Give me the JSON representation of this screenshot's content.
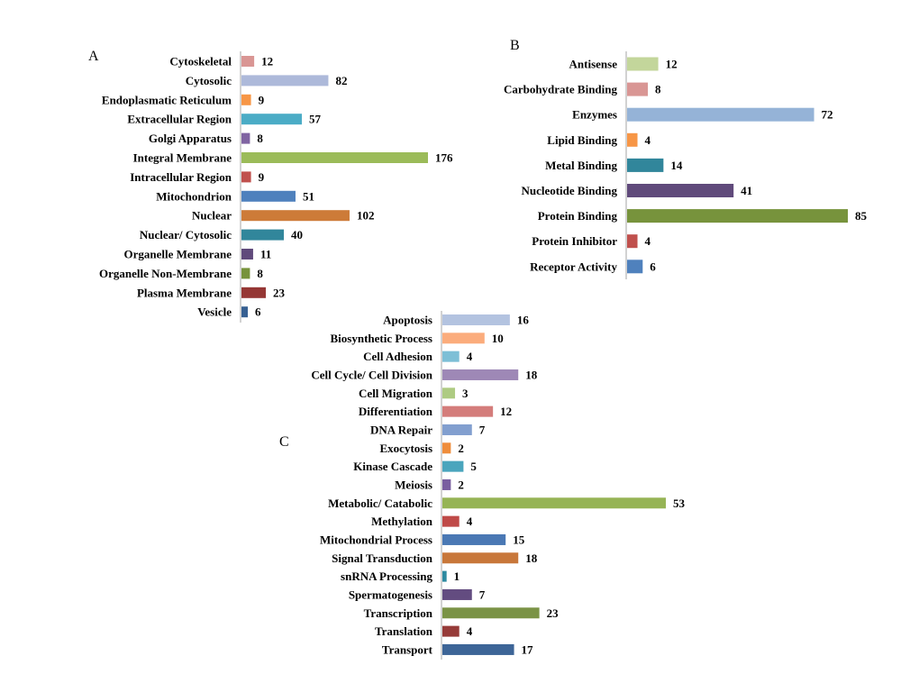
{
  "chart_data": [
    {
      "type": "bar",
      "orientation": "horizontal",
      "panel_label": "A",
      "categories": [
        "Cytoskeletal",
        "Cytosolic",
        "Endoplasmatic Reticulum",
        "Extracellular  Region",
        "Golgi Apparatus",
        "Integral Membrane",
        "Intracellular Region",
        "Mitochondrion",
        "Nuclear",
        "Nuclear/ Cytosolic",
        "Organelle Membrane",
        "Organelle Non-Membrane",
        "Plasma Membrane",
        "Vesicle"
      ],
      "values": [
        12,
        82,
        9,
        57,
        8,
        176,
        9,
        51,
        102,
        40,
        11,
        8,
        23,
        6
      ],
      "colors": [
        "#d99694",
        "#adb9da",
        "#f79646",
        "#4bacc6",
        "#8064a2",
        "#9bbb59",
        "#c0504d",
        "#4f81bd",
        "#cd7b38",
        "#31869b",
        "#604a7b",
        "#77933c",
        "#953735",
        "#376092"
      ],
      "data_labels": true
    },
    {
      "type": "bar",
      "orientation": "horizontal",
      "panel_label": "B",
      "categories": [
        "Antisense",
        "Carbohydrate Binding",
        "Enzymes",
        "Lipid Binding",
        "Metal Binding",
        "Nucleotide Binding",
        "Protein Binding",
        "Protein Inhibitor",
        "Receptor Activity"
      ],
      "values": [
        12,
        8,
        72,
        4,
        14,
        41,
        85,
        4,
        6
      ],
      "colors": [
        "#c3d69b",
        "#d99694",
        "#95b3d7",
        "#f79646",
        "#31869b",
        "#604a7b",
        "#77933c",
        "#c0504d",
        "#4f81bd"
      ],
      "data_labels": true
    },
    {
      "type": "bar",
      "orientation": "horizontal",
      "panel_label": "C",
      "categories": [
        "Apoptosis",
        "Biosynthetic Process",
        "Cell Adhesion",
        "Cell Cycle/ Cell Division",
        "Cell Migration",
        "Differentiation",
        "DNA Repair",
        "Exocytosis",
        "Kinase Cascade",
        "Meiosis",
        "Metabolic/ Catabolic",
        "Methylation",
        "Mitochondrial Process",
        "Signal Transduction",
        "snRNA Processing",
        "Spermatogenesis",
        "Transcription",
        "Translation",
        "Transport"
      ],
      "values": [
        16,
        10,
        4,
        18,
        3,
        12,
        7,
        2,
        5,
        2,
        53,
        4,
        15,
        18,
        1,
        7,
        23,
        4,
        17
      ],
      "colors": [
        "#b3c3e0",
        "#fbac7c",
        "#7dbfd6",
        "#9e88b6",
        "#aecb82",
        "#d47d7b",
        "#829fcf",
        "#ef8d3c",
        "#4aa5bd",
        "#7a5fa0",
        "#96b455",
        "#bf4a48",
        "#4a78b4",
        "#c8773a",
        "#2e8aa0",
        "#634c80",
        "#7b9346",
        "#963b39",
        "#3d6597"
      ],
      "data_labels": true
    }
  ]
}
